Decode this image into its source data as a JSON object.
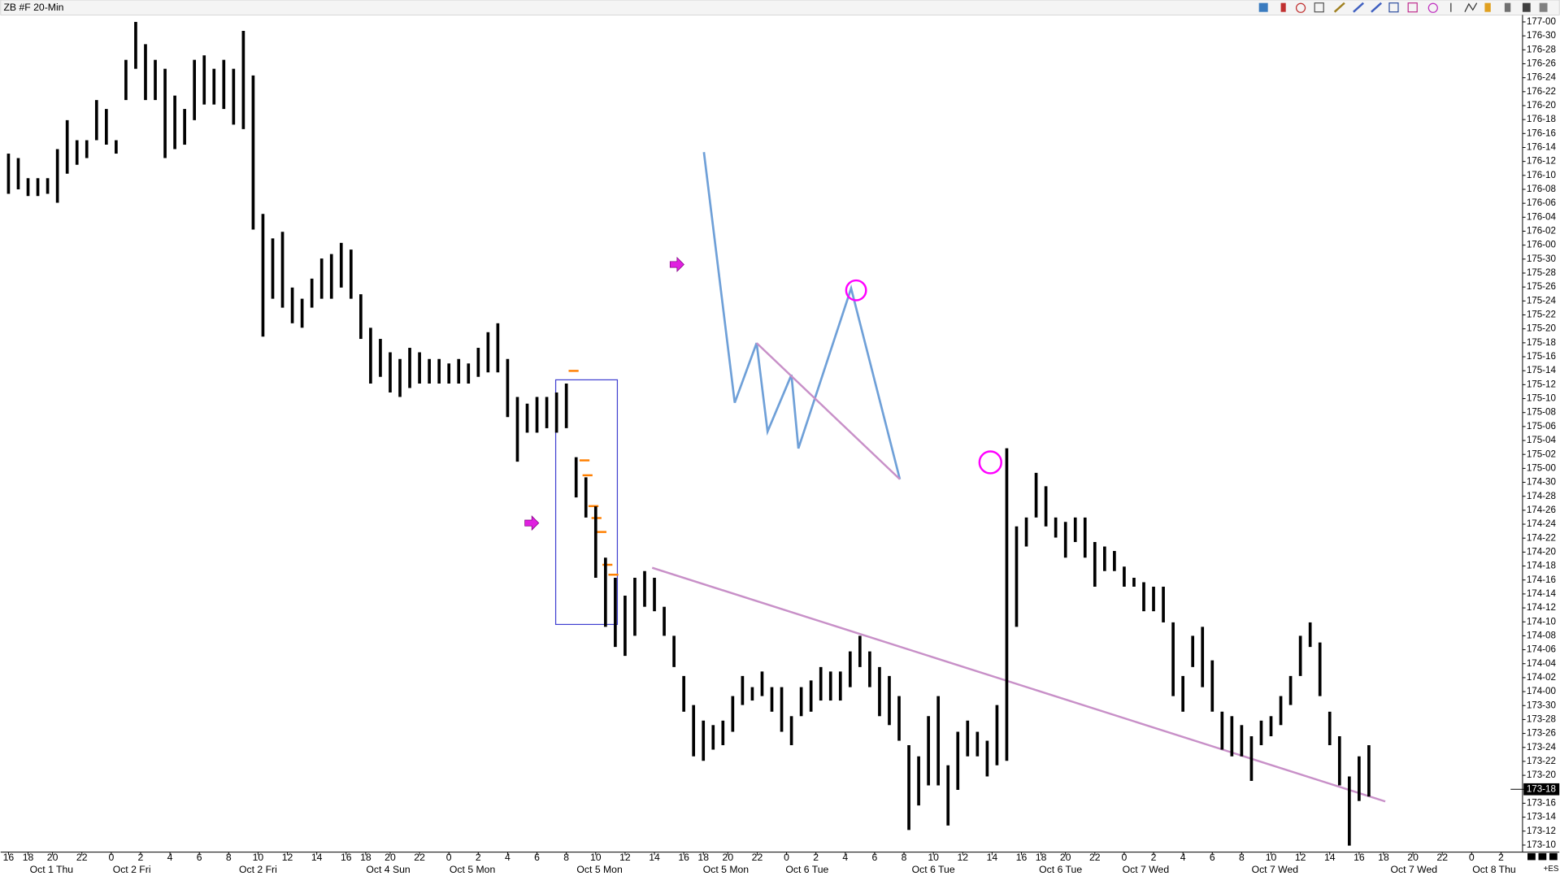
{
  "chart_data": {
    "type": "ohlc",
    "title": "ZB #F 20-Min",
    "color": "#000000",
    "high": [
      176.41,
      176.39,
      176.3,
      176.3,
      176.3,
      176.43,
      176.56,
      176.47,
      176.47,
      176.65,
      176.61,
      176.47,
      176.83,
      177.0,
      176.9,
      176.83,
      176.79,
      176.67,
      176.61,
      176.83,
      176.85,
      176.79,
      176.83,
      176.79,
      176.96,
      176.76,
      176.14,
      176.03,
      176.06,
      175.81,
      175.76,
      175.85,
      175.94,
      175.96,
      176.01,
      175.98,
      175.78,
      175.63,
      175.58,
      175.52,
      175.49,
      175.54,
      175.52,
      175.49,
      175.49,
      175.47,
      175.49,
      175.47,
      175.54,
      175.61,
      175.65,
      175.49,
      175.32,
      175.29,
      175.32,
      175.32,
      175.34,
      175.38,
      175.05,
      174.96,
      174.83,
      174.6,
      174.51,
      174.43,
      174.51,
      174.54,
      174.51,
      174.38,
      174.25,
      174.07,
      173.94,
      173.87,
      173.85,
      173.87,
      173.98,
      174.07,
      174.02,
      174.09,
      174.02,
      174.02,
      173.89,
      174.02,
      174.05,
      174.11,
      174.09,
      174.09,
      174.18,
      174.25,
      174.18,
      174.11,
      174.07,
      173.98,
      173.76,
      173.71,
      173.89,
      173.98,
      173.67,
      173.82,
      173.87,
      173.82,
      173.78,
      173.94,
      175.09,
      174.74,
      174.78,
      174.98,
      174.92,
      174.78,
      174.76,
      174.78,
      174.78,
      174.67,
      174.65,
      174.63,
      174.56,
      174.51,
      174.49,
      174.47,
      174.47,
      174.31,
      174.07,
      174.25,
      174.29,
      174.14,
      173.91,
      173.89,
      173.85,
      173.8,
      173.87,
      173.89,
      173.98,
      174.07,
      174.25,
      174.31,
      174.22,
      173.91,
      173.8,
      173.62,
      173.71,
      173.76
    ],
    "low": [
      176.23,
      176.25,
      176.22,
      176.22,
      176.23,
      176.19,
      176.32,
      176.36,
      176.39,
      176.47,
      176.45,
      176.41,
      176.65,
      176.79,
      176.65,
      176.65,
      176.39,
      176.43,
      176.45,
      176.56,
      176.63,
      176.63,
      176.61,
      176.54,
      176.52,
      176.07,
      175.59,
      175.76,
      175.72,
      175.65,
      175.63,
      175.72,
      175.76,
      175.76,
      175.81,
      175.76,
      175.58,
      175.38,
      175.41,
      175.34,
      175.32,
      175.36,
      175.38,
      175.38,
      175.38,
      175.38,
      175.38,
      175.38,
      175.41,
      175.43,
      175.43,
      175.23,
      175.03,
      175.16,
      175.16,
      175.18,
      175.16,
      175.18,
      174.87,
      174.78,
      174.51,
      174.29,
      174.2,
      174.16,
      174.25,
      174.38,
      174.36,
      174.25,
      174.11,
      173.91,
      173.71,
      173.69,
      173.74,
      173.76,
      173.82,
      173.94,
      173.96,
      173.98,
      173.91,
      173.82,
      173.76,
      173.89,
      173.91,
      173.96,
      173.96,
      173.96,
      174.02,
      174.11,
      174.02,
      173.89,
      173.85,
      173.78,
      173.38,
      173.49,
      173.58,
      173.58,
      173.4,
      173.56,
      173.71,
      173.71,
      173.62,
      173.67,
      173.69,
      174.29,
      174.65,
      174.78,
      174.74,
      174.69,
      174.6,
      174.67,
      174.6,
      174.47,
      174.54,
      174.54,
      174.47,
      174.47,
      174.36,
      174.36,
      174.31,
      173.98,
      173.91,
      174.11,
      174.02,
      173.91,
      173.74,
      173.71,
      173.71,
      173.6,
      173.76,
      173.8,
      173.85,
      173.94,
      174.07,
      174.2,
      173.98,
      173.76,
      173.58,
      173.31,
      173.51,
      173.53
    ],
    "ylim": [
      173.28,
      177.03
    ],
    "yticks": [
      {
        "value": 173.3125,
        "label": "173-10"
      },
      {
        "value": 173.375,
        "label": "173-12"
      },
      {
        "value": 173.4375,
        "label": "173-14"
      },
      {
        "value": 173.5,
        "label": "173-16"
      },
      {
        "value": 173.5625,
        "label": "173-18"
      },
      {
        "value": 173.625,
        "label": "173-20"
      },
      {
        "value": 173.6875,
        "label": "173-22"
      },
      {
        "value": 173.75,
        "label": "173-24"
      },
      {
        "value": 173.8125,
        "label": "173-26"
      },
      {
        "value": 173.875,
        "label": "173-28"
      },
      {
        "value": 173.9375,
        "label": "173-30"
      },
      {
        "value": 174,
        "label": "174-00"
      },
      {
        "value": 174.0625,
        "label": "174-02"
      },
      {
        "value": 174.125,
        "label": "174-04"
      },
      {
        "value": 174.1875,
        "label": "174-06"
      },
      {
        "value": 174.25,
        "label": "174-08"
      },
      {
        "value": 174.3125,
        "label": "174-10"
      },
      {
        "value": 174.375,
        "label": "174-12"
      },
      {
        "value": 174.4375,
        "label": "174-14"
      },
      {
        "value": 174.5,
        "label": "174-16"
      },
      {
        "value": 174.5625,
        "label": "174-18"
      },
      {
        "value": 174.625,
        "label": "174-20"
      },
      {
        "value": 174.6875,
        "label": "174-22"
      },
      {
        "value": 174.75,
        "label": "174-24"
      },
      {
        "value": 174.8125,
        "label": "174-26"
      },
      {
        "value": 174.875,
        "label": "174-28"
      },
      {
        "value": 174.9375,
        "label": "174-30"
      },
      {
        "value": 175,
        "label": "175-00"
      },
      {
        "value": 175.0625,
        "label": "175-02"
      },
      {
        "value": 175.125,
        "label": "175-04"
      },
      {
        "value": 175.1875,
        "label": "175-06"
      },
      {
        "value": 175.25,
        "label": "175-08"
      },
      {
        "value": 175.3125,
        "label": "175-10"
      },
      {
        "value": 175.375,
        "label": "175-12"
      },
      {
        "value": 175.4375,
        "label": "175-14"
      },
      {
        "value": 175.5,
        "label": "175-16"
      },
      {
        "value": 175.5625,
        "label": "175-18"
      },
      {
        "value": 175.625,
        "label": "175-20"
      },
      {
        "value": 175.6875,
        "label": "175-22"
      },
      {
        "value": 175.75,
        "label": "175-24"
      },
      {
        "value": 175.8125,
        "label": "175-26"
      },
      {
        "value": 175.875,
        "label": "175-28"
      },
      {
        "value": 175.9375,
        "label": "175-30"
      },
      {
        "value": 176,
        "label": "176-00"
      },
      {
        "value": 176.0625,
        "label": "176-02"
      },
      {
        "value": 176.125,
        "label": "176-04"
      },
      {
        "value": 176.1875,
        "label": "176-06"
      },
      {
        "value": 176.25,
        "label": "176-08"
      },
      {
        "value": 176.3125,
        "label": "176-10"
      },
      {
        "value": 176.375,
        "label": "176-12"
      },
      {
        "value": 176.4375,
        "label": "176-14"
      },
      {
        "value": 176.5,
        "label": "176-16"
      },
      {
        "value": 176.5625,
        "label": "176-18"
      },
      {
        "value": 176.625,
        "label": "176-20"
      },
      {
        "value": 176.6875,
        "label": "176-22"
      },
      {
        "value": 176.75,
        "label": "176-24"
      },
      {
        "value": 176.8125,
        "label": "176-26"
      },
      {
        "value": 176.875,
        "label": "176-28"
      },
      {
        "value": 176.9375,
        "label": "176-30"
      },
      {
        "value": 177,
        "label": "177-00"
      }
    ],
    "last_price": {
      "value": 173.5625,
      "label": "173-18"
    },
    "xlim": [
      -0.8,
      154.7
    ],
    "xticks": [
      {
        "value": 0,
        "label": "16"
      },
      {
        "value": 2,
        "label": "18"
      },
      {
        "value": 4.5,
        "label": "20"
      },
      {
        "value": 7.5,
        "label": "22"
      },
      {
        "value": 10.5,
        "label": "0"
      },
      {
        "value": 13.5,
        "label": "2"
      },
      {
        "value": 16.5,
        "label": "4"
      },
      {
        "value": 19.5,
        "label": "6"
      },
      {
        "value": 22.5,
        "label": "8"
      },
      {
        "value": 25.5,
        "label": "10"
      },
      {
        "value": 28.5,
        "label": "12"
      },
      {
        "value": 31.5,
        "label": "14"
      },
      {
        "value": 34.5,
        "label": "16"
      },
      {
        "value": 36.5,
        "label": "18"
      },
      {
        "value": 39,
        "label": "20"
      },
      {
        "value": 42,
        "label": "22"
      },
      {
        "value": 45,
        "label": "0"
      },
      {
        "value": 48,
        "label": "2"
      },
      {
        "value": 51,
        "label": "4"
      },
      {
        "value": 54,
        "label": "6"
      },
      {
        "value": 57,
        "label": "8"
      },
      {
        "value": 60,
        "label": "10"
      },
      {
        "value": 63,
        "label": "12"
      },
      {
        "value": 66,
        "label": "14"
      },
      {
        "value": 69,
        "label": "16"
      },
      {
        "value": 71,
        "label": "18"
      },
      {
        "value": 73.5,
        "label": "20"
      },
      {
        "value": 76.5,
        "label": "22"
      },
      {
        "value": 79.5,
        "label": "0"
      },
      {
        "value": 82.5,
        "label": "2"
      },
      {
        "value": 85.5,
        "label": "4"
      },
      {
        "value": 88.5,
        "label": "6"
      },
      {
        "value": 91.5,
        "label": "8"
      },
      {
        "value": 94.5,
        "label": "10"
      },
      {
        "value": 97.5,
        "label": "12"
      },
      {
        "value": 100.5,
        "label": "14"
      },
      {
        "value": 103.5,
        "label": "16"
      },
      {
        "value": 105.5,
        "label": "18"
      },
      {
        "value": 108,
        "label": "20"
      },
      {
        "value": 111,
        "label": "22"
      },
      {
        "value": 114,
        "label": "0"
      },
      {
        "value": 117,
        "label": "2"
      },
      {
        "value": 120,
        "label": "4"
      },
      {
        "value": 123,
        "label": "6"
      },
      {
        "value": 126,
        "label": "8"
      },
      {
        "value": 129,
        "label": "10"
      },
      {
        "value": 132,
        "label": "12"
      },
      {
        "value": 135,
        "label": "14"
      },
      {
        "value": 138,
        "label": "16"
      },
      {
        "value": 140.5,
        "label": "18"
      },
      {
        "value": 143.5,
        "label": "20"
      },
      {
        "value": 146.5,
        "label": "22"
      },
      {
        "value": 149.5,
        "label": "0"
      },
      {
        "value": 152.5,
        "label": "2"
      }
    ],
    "date_labels": [
      {
        "value": 4.4,
        "label": "Oct 1 Thu"
      },
      {
        "value": 12.6,
        "label": "Oct 2 Fri"
      },
      {
        "value": 25.5,
        "label": "Oct 2 Fri"
      },
      {
        "value": 38.8,
        "label": "Oct 4 Sun"
      },
      {
        "value": 47.4,
        "label": "Oct 5 Mon"
      },
      {
        "value": 60.4,
        "label": "Oct 5 Mon"
      },
      {
        "value": 73.3,
        "label": "Oct 5 Mon"
      },
      {
        "value": 81.6,
        "label": "Oct 6 Tue"
      },
      {
        "value": 94.5,
        "label": "Oct 6 Tue"
      },
      {
        "value": 107.5,
        "label": "Oct 6 Tue"
      },
      {
        "value": 116.2,
        "label": "Oct 7 Wed"
      },
      {
        "value": 129.4,
        "label": "Oct 7 Wed"
      },
      {
        "value": 143.6,
        "label": "Oct 7 Wed"
      },
      {
        "value": 151.8,
        "label": "Oct 8 Thu"
      }
    ],
    "corner_label": "+ES"
  }
}
